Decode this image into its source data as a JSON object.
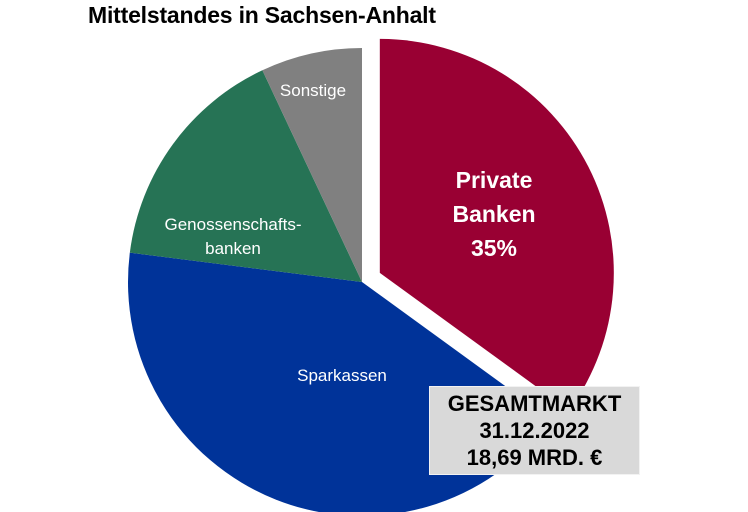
{
  "title": "Mittelstandes in Sachsen-Anhalt",
  "info_box": {
    "line1": "GESAMTMARKT",
    "line2": "31.12.2022",
    "line3": "18,69 MRD. €"
  },
  "chart_data": {
    "type": "pie",
    "title": "Mittelstandes in Sachsen-Anhalt",
    "slices": [
      {
        "label_lines": [
          "Private",
          "Banken",
          "35%"
        ],
        "value": 35,
        "color": "#990033",
        "exploded": true,
        "label_bold": true,
        "label_color": "#ffffff"
      },
      {
        "label_lines": [
          "Sparkassen"
        ],
        "value": 42,
        "color": "#003399",
        "exploded": false,
        "label_bold": false,
        "label_color": "#ffffff"
      },
      {
        "label_lines": [
          "Genossenschafts-",
          "banken"
        ],
        "value": 16,
        "color": "#267355",
        "exploded": false,
        "label_bold": false,
        "label_color": "#ffffff"
      },
      {
        "label_lines": [
          "Sonstige"
        ],
        "value": 7,
        "color": "#808080",
        "exploded": false,
        "label_bold": false,
        "label_color": "#ffffff"
      }
    ],
    "start_angle_deg": 0,
    "direction": "clockwise",
    "legend": "none"
  }
}
